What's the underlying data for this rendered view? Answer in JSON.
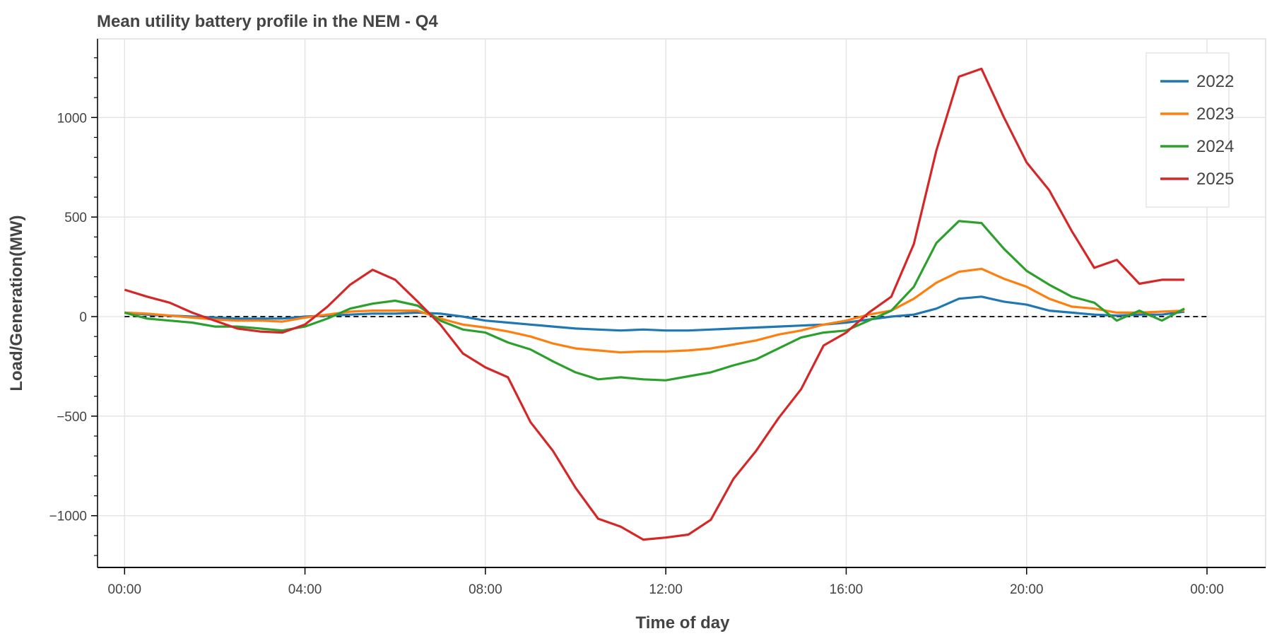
{
  "chart_data": {
    "type": "line",
    "title": "Mean utility battery profile in the NEM - Q4",
    "xlabel": "Time of day",
    "ylabel": "Load/Generation(MW)",
    "x_ticks": [
      "00:00",
      "04:00",
      "08:00",
      "12:00",
      "16:00",
      "20:00",
      "00:00"
    ],
    "y_ticks": [
      -1000,
      -500,
      0,
      500,
      1000
    ],
    "y_tick_labels": [
      "−1000",
      "−500",
      "0",
      "500",
      "1000"
    ],
    "ylim": [
      -1260,
      1395
    ],
    "xlim_hours": [
      -0.6,
      25.3
    ],
    "grid": true,
    "zero_line": "dashed",
    "legend_position": "top-right",
    "x": [
      "00:00",
      "00:30",
      "01:00",
      "01:30",
      "02:00",
      "02:30",
      "03:00",
      "03:30",
      "04:00",
      "04:30",
      "05:00",
      "05:30",
      "06:00",
      "06:30",
      "07:00",
      "07:30",
      "08:00",
      "08:30",
      "09:00",
      "09:30",
      "10:00",
      "10:30",
      "11:00",
      "11:30",
      "12:00",
      "12:30",
      "13:00",
      "13:30",
      "14:00",
      "14:30",
      "15:00",
      "15:30",
      "16:00",
      "16:30",
      "17:00",
      "17:30",
      "18:00",
      "18:30",
      "19:00",
      "19:30",
      "20:00",
      "20:30",
      "21:00",
      "21:30",
      "22:00",
      "22:30",
      "23:00",
      "23:30"
    ],
    "series": [
      {
        "name": "2022",
        "color": "#1f77b4",
        "values": [
          20,
          10,
          5,
          0,
          -5,
          -10,
          -10,
          -10,
          0,
          5,
          10,
          15,
          15,
          20,
          15,
          0,
          -20,
          -30,
          -40,
          -50,
          -60,
          -65,
          -70,
          -65,
          -70,
          -70,
          -65,
          -60,
          -55,
          -50,
          -45,
          -40,
          -30,
          -15,
          0,
          10,
          40,
          90,
          100,
          75,
          60,
          30,
          20,
          10,
          5,
          10,
          10,
          25
        ]
      },
      {
        "name": "2023",
        "color": "#ff7f0e",
        "values": [
          20,
          15,
          5,
          -5,
          -15,
          -20,
          -20,
          -25,
          -5,
          10,
          25,
          30,
          30,
          30,
          -10,
          -40,
          -55,
          -75,
          -100,
          -135,
          -160,
          -170,
          -180,
          -175,
          -175,
          -170,
          -160,
          -140,
          -120,
          -90,
          -70,
          -40,
          -20,
          10,
          30,
          90,
          170,
          225,
          240,
          190,
          150,
          90,
          50,
          40,
          20,
          20,
          25,
          30
        ]
      },
      {
        "name": "2024",
        "color": "#2ca02c",
        "values": [
          20,
          -10,
          -20,
          -30,
          -50,
          -50,
          -60,
          -70,
          -50,
          -10,
          40,
          65,
          80,
          55,
          -20,
          -65,
          -80,
          -130,
          -165,
          -225,
          -280,
          -315,
          -305,
          -315,
          -320,
          -300,
          -280,
          -245,
          -215,
          -160,
          -105,
          -80,
          -70,
          -20,
          30,
          150,
          370,
          480,
          470,
          340,
          230,
          160,
          100,
          70,
          -20,
          30,
          -20,
          40
        ]
      },
      {
        "name": "2025",
        "color": "#d62728",
        "values": [
          135,
          100,
          70,
          20,
          -20,
          -60,
          -75,
          -80,
          -40,
          50,
          160,
          235,
          185,
          75,
          -40,
          -185,
          -255,
          -305,
          -530,
          -675,
          -860,
          -1015,
          -1055,
          -1120,
          -1110,
          -1095,
          -1020,
          -815,
          -675,
          -510,
          -365,
          -145,
          -80,
          20,
          100,
          365,
          835,
          1205,
          1245,
          1000,
          775,
          635,
          430,
          245,
          285,
          165,
          185,
          185
        ]
      }
    ]
  }
}
